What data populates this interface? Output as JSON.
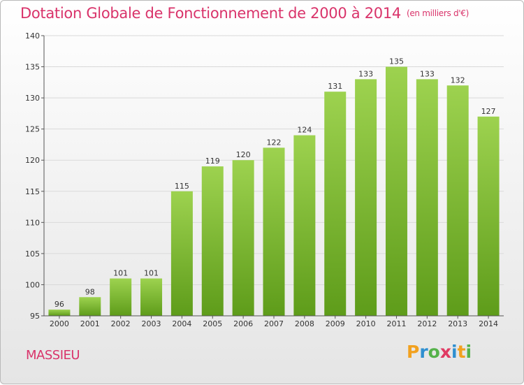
{
  "header": {
    "title": "Dotation Globale de Fonctionnement de 2000 à 2014",
    "unit": "(en milliers d'€)"
  },
  "footer": {
    "commune": "MASSIEU",
    "logo_letters": [
      "P",
      "r",
      "o",
      "x",
      "i",
      "t",
      "i"
    ],
    "logo_colors": [
      "#f2a11f",
      "#2f8fd0",
      "#55b24a",
      "#e03a63",
      "#2f8fd0",
      "#f2a11f",
      "#55b24a"
    ]
  },
  "colors": {
    "bar_top": "#9dd24f",
    "bar_bottom": "#5e9c1a",
    "grid": "#d9d9d9",
    "axis": "#555555",
    "title": "#d9336a"
  },
  "chart_data": {
    "type": "bar",
    "title": "Dotation Globale de Fonctionnement de 2000 à 2014",
    "xlabel": "",
    "ylabel": "",
    "categories": [
      "2000",
      "2001",
      "2002",
      "2003",
      "2004",
      "2005",
      "2006",
      "2007",
      "2008",
      "2009",
      "2010",
      "2011",
      "2012",
      "2013",
      "2014"
    ],
    "values": [
      96,
      98,
      101,
      101,
      115,
      119,
      120,
      122,
      124,
      131,
      133,
      135,
      133,
      132,
      127
    ],
    "ylim": [
      95,
      140
    ],
    "yticks": [
      95,
      100,
      105,
      110,
      115,
      120,
      125,
      130,
      135,
      140
    ],
    "grid": true
  }
}
